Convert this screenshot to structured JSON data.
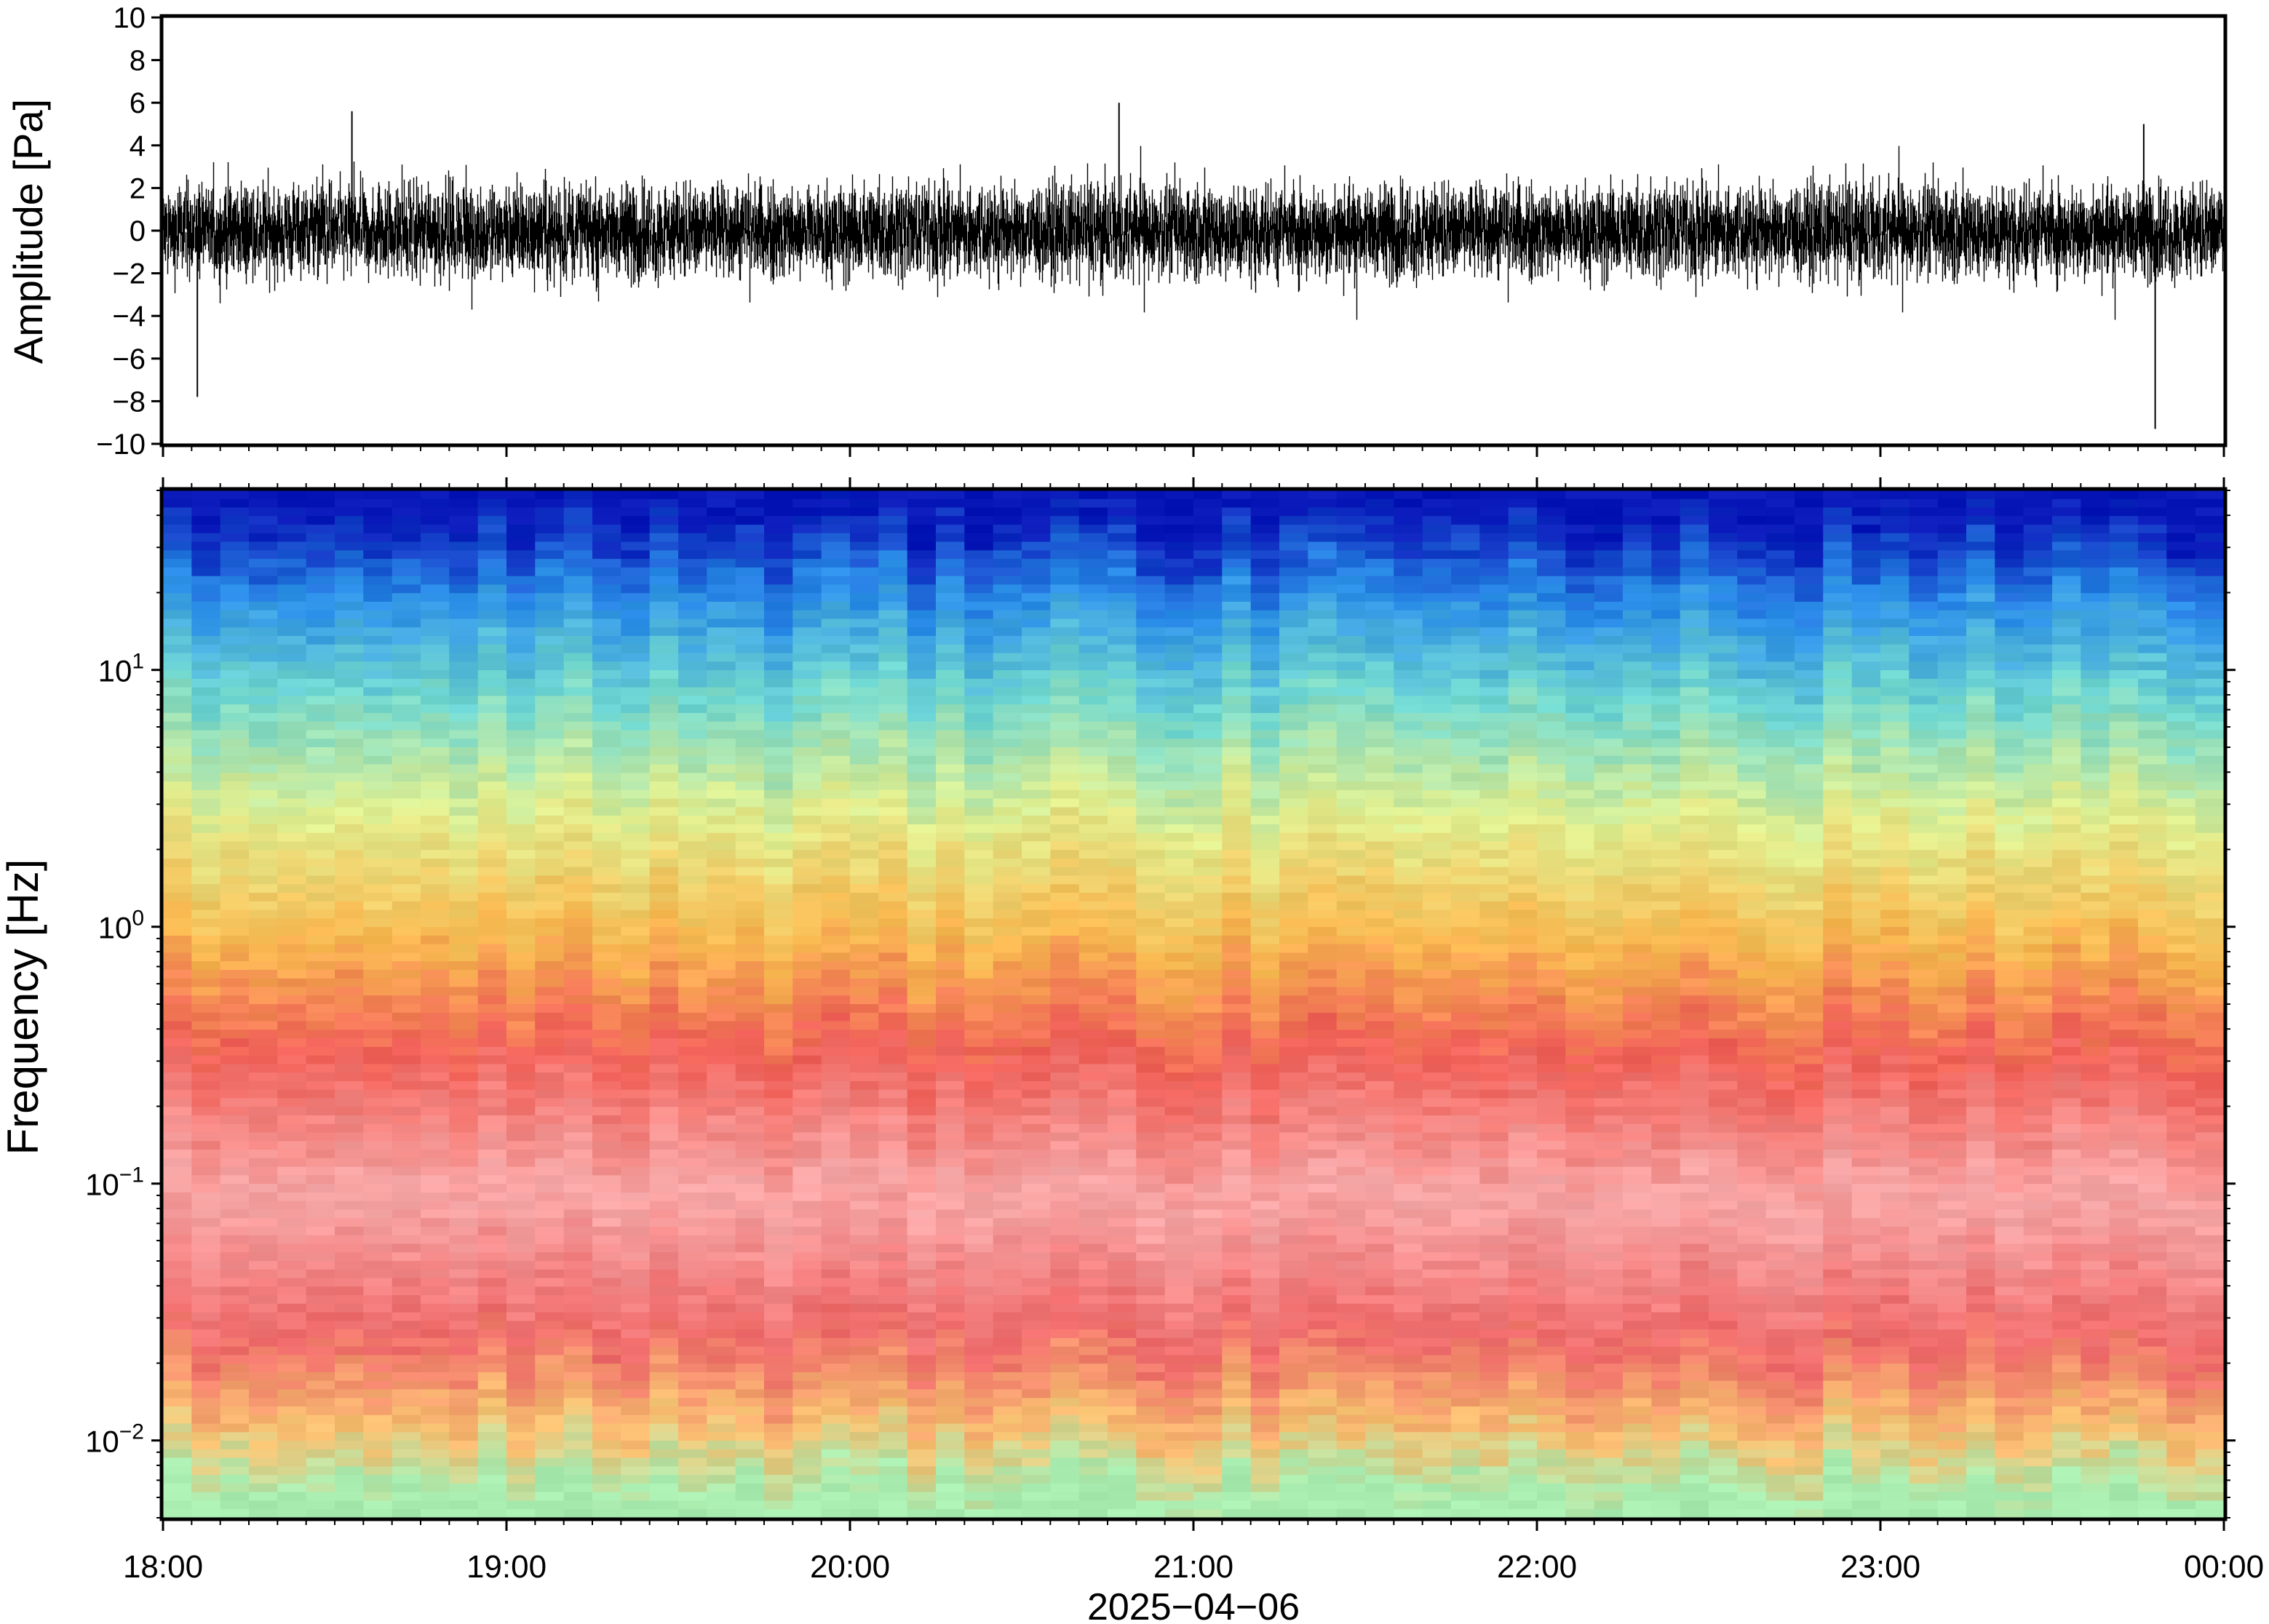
{
  "chart_data": [
    {
      "type": "line",
      "name": "waveform",
      "ylabel": "Amplitude [Pa]",
      "ylim": [
        -10,
        10
      ],
      "yticks": [
        10,
        8,
        6,
        4,
        2,
        0,
        -2,
        -4,
        -6,
        -8,
        -10
      ],
      "ytick_labels": [
        "10",
        "8",
        "6",
        "4",
        "2",
        "0",
        "−2",
        "−4",
        "−6",
        "−8",
        "−10"
      ],
      "xlim": [
        "2025-04-06T18:00",
        "2025-04-07T00:00"
      ],
      "approx_envelope": {
        "typical_range": [
          -3,
          3
        ],
        "peaks": [
          {
            "time": "2025-04-06T18:06",
            "value": -7.8
          },
          {
            "time": "2025-04-06T18:33",
            "value": 5.6
          },
          {
            "time": "2025-04-06T20:47",
            "value": 6.0
          },
          {
            "time": "2025-04-06T23:48",
            "value": -9.3
          },
          {
            "time": "2025-04-06T23:46",
            "value": 5.0
          }
        ]
      }
    },
    {
      "type": "heatmap",
      "name": "spectrogram",
      "ylabel": "Frequency [Hz]",
      "yscale": "log",
      "ylim": [
        0.005,
        50
      ],
      "ytick_labels": [
        {
          "base": "10",
          "exp": "1",
          "value": 10
        },
        {
          "base": "10",
          "exp": "0",
          "value": 1
        },
        {
          "base": "10",
          "exp": "−1",
          "value": 0.1
        },
        {
          "base": "10",
          "exp": "−2",
          "value": 0.01
        }
      ],
      "xlim": [
        "2025-04-06T18:00",
        "2025-04-07T00:00"
      ],
      "colormap": [
        "#0a0a9a",
        "#1060e0",
        "#40c0f0",
        "#70e0d0",
        "#e8f090",
        "#f8b040",
        "#f06060",
        "#f8b0b0",
        "#90e0b0"
      ],
      "color_bands": [
        {
          "freq_range": [
            30,
            50
          ],
          "color": "#0818b8"
        },
        {
          "freq_range": [
            12,
            30
          ],
          "color": "#2a8ee8"
        },
        {
          "freq_range": [
            5,
            12
          ],
          "color": "#70d8d0"
        },
        {
          "freq_range": [
            1.5,
            5
          ],
          "color": "#e0ef90"
        },
        {
          "freq_range": [
            0.5,
            1.5
          ],
          "color": "#f8b850"
        },
        {
          "freq_range": [
            0.2,
            0.5
          ],
          "color": "#f06058"
        },
        {
          "freq_range": [
            0.04,
            0.2
          ],
          "color": "#f7a8a8"
        },
        {
          "freq_range": [
            0.015,
            0.04
          ],
          "color": "#ef6a6a"
        },
        {
          "freq_range": [
            0.008,
            0.015
          ],
          "color": "#f8c070"
        },
        {
          "freq_range": [
            0.005,
            0.008
          ],
          "color": "#a8ecb0"
        }
      ]
    }
  ],
  "x_axis": {
    "tick_labels": [
      "18:00",
      "19:00",
      "20:00",
      "21:00",
      "22:00",
      "23:00",
      "00:00"
    ],
    "date_label": "2025−04−06"
  }
}
